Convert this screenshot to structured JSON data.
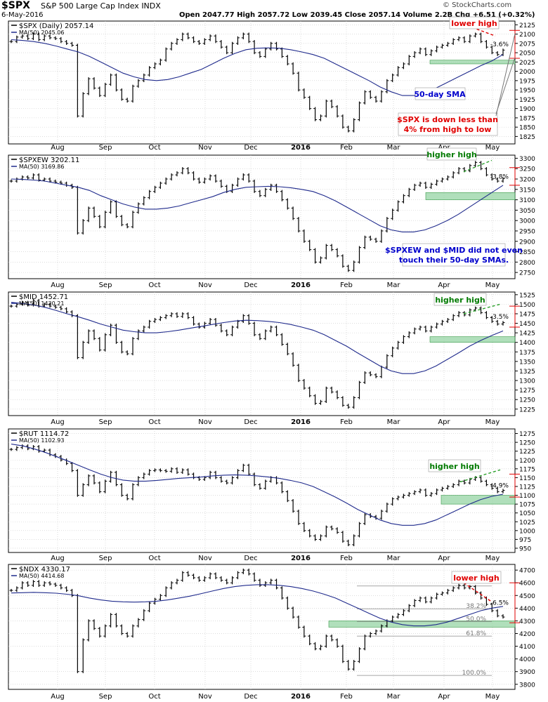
{
  "header": {
    "symbol": "$SPX",
    "name": "S&P 500 Large Cap Index",
    "exchange": "INDX",
    "date": "6-May-2016",
    "ohlc": "Open 2047.77  High 2057.72  Low 2039.45  Close 2057.14  Volume 2.2B  Chg +6.51 (+0.32%)",
    "watermark": "© StockCharts.com"
  },
  "colors": {
    "price": "#000000",
    "ma": "#1f2a8c",
    "zone": "#8fd19e",
    "red_text": "#e00000",
    "green_text": "#007a00",
    "blue_text": "#0000cc",
    "grid": "#c8c8c8",
    "red_tick": "#e00000"
  },
  "x_labels": [
    "Aug",
    "Sep",
    "Oct",
    "Nov",
    "Dec",
    "2016",
    "Feb",
    "Mar",
    "Apr",
    "May"
  ],
  "chart_data": [
    {
      "type": "ohlc-bar",
      "legend_price": "$SPX (Daily) 2057.14",
      "legend_ma": "MA(50) 2045.06",
      "yticks": [
        1825,
        1850,
        1875,
        1900,
        1925,
        1950,
        1975,
        2000,
        2025,
        2050,
        2075,
        2100,
        2125
      ],
      "ylim": [
        1805,
        2135
      ],
      "series": [
        2080,
        2092,
        2095,
        2088,
        2100,
        2085,
        2095,
        2090,
        2088,
        2080,
        2075,
        2070,
        1880,
        1940,
        1980,
        1955,
        1935,
        1965,
        1990,
        1950,
        1925,
        1920,
        1960,
        1975,
        1990,
        2010,
        2020,
        2030,
        2060,
        2075,
        2085,
        2100,
        2090,
        2080,
        2075,
        2085,
        2095,
        2080,
        2065,
        2050,
        2075,
        2090,
        2100,
        2080,
        2050,
        2040,
        2060,
        2075,
        2060,
        2040,
        2020,
        1995,
        1950,
        1930,
        1900,
        1870,
        1880,
        1920,
        1905,
        1880,
        1850,
        1840,
        1870,
        1915,
        1945,
        1930,
        1920,
        1945,
        1975,
        1990,
        2010,
        2020,
        2040,
        2050,
        2060,
        2045,
        2055,
        2065,
        2070,
        2075,
        2085,
        2090,
        2080,
        2095,
        2100,
        2080,
        2065,
        2050,
        2045,
        2057
      ],
      "ma": [
        2085,
        2083,
        2080,
        2075,
        2068,
        2060,
        2052,
        2040,
        2025,
        2010,
        1995,
        1985,
        1978,
        1975,
        1978,
        1985,
        1995,
        2005,
        2020,
        2035,
        2048,
        2058,
        2062,
        2063,
        2062,
        2058,
        2052,
        2045,
        2035,
        2020,
        2005,
        1990,
        1975,
        1958,
        1945,
        1935,
        1935,
        1942,
        1955,
        1970,
        1985,
        2000,
        2015,
        2028,
        2045
      ],
      "markers": [
        "-3.6%"
      ],
      "annotations": [
        "lower high",
        "50-day SMA",
        "$SPX is down less than",
        "4% from high to low"
      ]
    },
    {
      "type": "ohlc-bar",
      "legend_price": "$SPXEW 3202.11",
      "legend_ma": "MA(50) 3169.86",
      "yticks": [
        2750,
        2800,
        2850,
        2900,
        2950,
        3000,
        3050,
        3100,
        3150,
        3200,
        3250,
        3300
      ],
      "ylim": [
        2720,
        3315
      ],
      "series": [
        3190,
        3200,
        3210,
        3205,
        3220,
        3195,
        3200,
        3190,
        3185,
        3180,
        3170,
        3160,
        2940,
        3000,
        3060,
        3020,
        2970,
        3040,
        3090,
        3020,
        2980,
        2970,
        3040,
        3080,
        3110,
        3140,
        3160,
        3180,
        3200,
        3220,
        3230,
        3250,
        3230,
        3200,
        3185,
        3200,
        3215,
        3190,
        3165,
        3140,
        3170,
        3200,
        3220,
        3190,
        3140,
        3120,
        3150,
        3170,
        3140,
        3100,
        3060,
        3010,
        2950,
        2900,
        2860,
        2800,
        2820,
        2880,
        2860,
        2830,
        2780,
        2760,
        2800,
        2870,
        2920,
        2910,
        2900,
        2950,
        3010,
        3050,
        3090,
        3120,
        3150,
        3170,
        3180,
        3160,
        3175,
        3190,
        3200,
        3210,
        3230,
        3250,
        3240,
        3265,
        3280,
        3250,
        3220,
        3200,
        3190,
        3202
      ],
      "ma": [
        3200,
        3198,
        3195,
        3190,
        3180,
        3170,
        3160,
        3145,
        3120,
        3100,
        3080,
        3065,
        3055,
        3055,
        3060,
        3070,
        3085,
        3100,
        3115,
        3135,
        3150,
        3160,
        3163,
        3165,
        3163,
        3158,
        3150,
        3140,
        3120,
        3095,
        3065,
        3035,
        3005,
        2975,
        2955,
        2945,
        2945,
        2955,
        2975,
        3000,
        3030,
        3065,
        3100,
        3135,
        3170
      ],
      "markers": [
        "-3.8%"
      ],
      "annotations": [
        "higher high",
        "$SPXEW and $MID did not even",
        "touch their 50-day SMAs."
      ]
    },
    {
      "type": "ohlc-bar",
      "legend_price": "$MID 1452.71",
      "legend_ma": "MA(50) 1430.21",
      "yticks": [
        1225,
        1250,
        1275,
        1300,
        1325,
        1350,
        1375,
        1400,
        1425,
        1450,
        1475,
        1500,
        1525
      ],
      "ylim": [
        1208,
        1532
      ],
      "series": [
        1495,
        1500,
        1505,
        1498,
        1510,
        1495,
        1500,
        1495,
        1492,
        1488,
        1480,
        1470,
        1360,
        1400,
        1430,
        1410,
        1380,
        1420,
        1445,
        1400,
        1375,
        1370,
        1410,
        1430,
        1440,
        1455,
        1460,
        1465,
        1470,
        1475,
        1468,
        1475,
        1465,
        1448,
        1440,
        1450,
        1460,
        1445,
        1430,
        1420,
        1440,
        1455,
        1470,
        1450,
        1420,
        1410,
        1430,
        1440,
        1420,
        1395,
        1370,
        1340,
        1300,
        1280,
        1260,
        1240,
        1245,
        1280,
        1270,
        1255,
        1235,
        1230,
        1255,
        1295,
        1320,
        1315,
        1310,
        1335,
        1365,
        1385,
        1400,
        1415,
        1425,
        1435,
        1440,
        1430,
        1440,
        1448,
        1455,
        1460,
        1470,
        1478,
        1472,
        1485,
        1490,
        1478,
        1465,
        1455,
        1448,
        1452
      ],
      "ma": [
        1505,
        1502,
        1498,
        1492,
        1484,
        1475,
        1467,
        1458,
        1448,
        1440,
        1432,
        1428,
        1425,
        1425,
        1428,
        1432,
        1437,
        1442,
        1447,
        1452,
        1456,
        1458,
        1457,
        1455,
        1452,
        1447,
        1440,
        1432,
        1420,
        1405,
        1390,
        1372,
        1355,
        1338,
        1325,
        1318,
        1318,
        1325,
        1338,
        1355,
        1372,
        1390,
        1405,
        1418,
        1430
      ],
      "markers": [
        "-3.5%"
      ],
      "annotations": [
        "higher high"
      ]
    },
    {
      "type": "ohlc-bar",
      "legend_price": "$RUT 1114.72",
      "legend_ma": "MA(50) 1102.93",
      "yticks": [
        950,
        975,
        1000,
        1025,
        1050,
        1075,
        1100,
        1125,
        1150,
        1175,
        1200,
        1225,
        1250,
        1275
      ],
      "ylim": [
        938,
        1288
      ],
      "series": [
        1230,
        1235,
        1240,
        1232,
        1238,
        1225,
        1228,
        1215,
        1210,
        1200,
        1190,
        1170,
        1100,
        1130,
        1155,
        1135,
        1110,
        1140,
        1165,
        1130,
        1100,
        1090,
        1130,
        1150,
        1160,
        1170,
        1172,
        1170,
        1168,
        1175,
        1165,
        1172,
        1160,
        1150,
        1145,
        1150,
        1165,
        1150,
        1140,
        1135,
        1150,
        1170,
        1185,
        1160,
        1130,
        1120,
        1140,
        1150,
        1135,
        1110,
        1085,
        1055,
        1020,
        1000,
        985,
        975,
        985,
        1010,
        1005,
        995,
        970,
        960,
        985,
        1020,
        1045,
        1040,
        1035,
        1055,
        1075,
        1090,
        1095,
        1100,
        1105,
        1110,
        1115,
        1100,
        1105,
        1115,
        1120,
        1125,
        1130,
        1140,
        1135,
        1145,
        1150,
        1140,
        1130,
        1120,
        1110,
        1114
      ],
      "ma": [
        1245,
        1240,
        1232,
        1222,
        1210,
        1198,
        1185,
        1172,
        1160,
        1150,
        1143,
        1140,
        1140,
        1142,
        1145,
        1148,
        1150,
        1152,
        1155,
        1157,
        1158,
        1157,
        1155,
        1152,
        1148,
        1142,
        1135,
        1125,
        1110,
        1095,
        1078,
        1060,
        1045,
        1030,
        1020,
        1015,
        1015,
        1020,
        1030,
        1045,
        1060,
        1075,
        1088,
        1097,
        1103
      ],
      "markers": [
        "-4.9%"
      ],
      "annotations": [
        "higher high"
      ]
    },
    {
      "type": "ohlc-bar",
      "legend_price": "$NDX 4330.17",
      "legend_ma": "MA(50) 4414.68",
      "yticks": [
        3800,
        3900,
        4000,
        4100,
        4200,
        4300,
        4400,
        4500,
        4600,
        4700
      ],
      "ylim": [
        3760,
        4745
      ],
      "series": [
        4540,
        4560,
        4600,
        4580,
        4610,
        4580,
        4600,
        4590,
        4580,
        4560,
        4540,
        4500,
        3900,
        4150,
        4300,
        4240,
        4180,
        4260,
        4350,
        4260,
        4200,
        4180,
        4260,
        4310,
        4380,
        4440,
        4470,
        4500,
        4560,
        4600,
        4620,
        4680,
        4660,
        4640,
        4620,
        4640,
        4670,
        4640,
        4620,
        4600,
        4640,
        4680,
        4700,
        4670,
        4620,
        4580,
        4600,
        4620,
        4560,
        4480,
        4400,
        4330,
        4250,
        4180,
        4120,
        4080,
        4100,
        4180,
        4150,
        4100,
        3980,
        3920,
        3980,
        4080,
        4180,
        4200,
        4220,
        4260,
        4300,
        4330,
        4350,
        4380,
        4420,
        4460,
        4480,
        4450,
        4480,
        4510,
        4520,
        4540,
        4560,
        4580,
        4560,
        4570,
        4520,
        4480,
        4430,
        4380,
        4340,
        4330
      ],
      "ma": [
        4520,
        4522,
        4525,
        4522,
        4518,
        4510,
        4498,
        4480,
        4465,
        4455,
        4450,
        4448,
        4450,
        4455,
        4465,
        4480,
        4495,
        4515,
        4535,
        4555,
        4570,
        4580,
        4585,
        4585,
        4580,
        4570,
        4555,
        4535,
        4510,
        4480,
        4440,
        4400,
        4360,
        4320,
        4290,
        4270,
        4260,
        4260,
        4270,
        4290,
        4320,
        4350,
        4380,
        4400,
        4414
      ],
      "markers": [
        "-6.5%"
      ],
      "fib_levels": [
        "38.2%",
        "50.0%",
        "61.8%",
        "100.0%"
      ],
      "annotations": [
        "lower high"
      ]
    }
  ]
}
